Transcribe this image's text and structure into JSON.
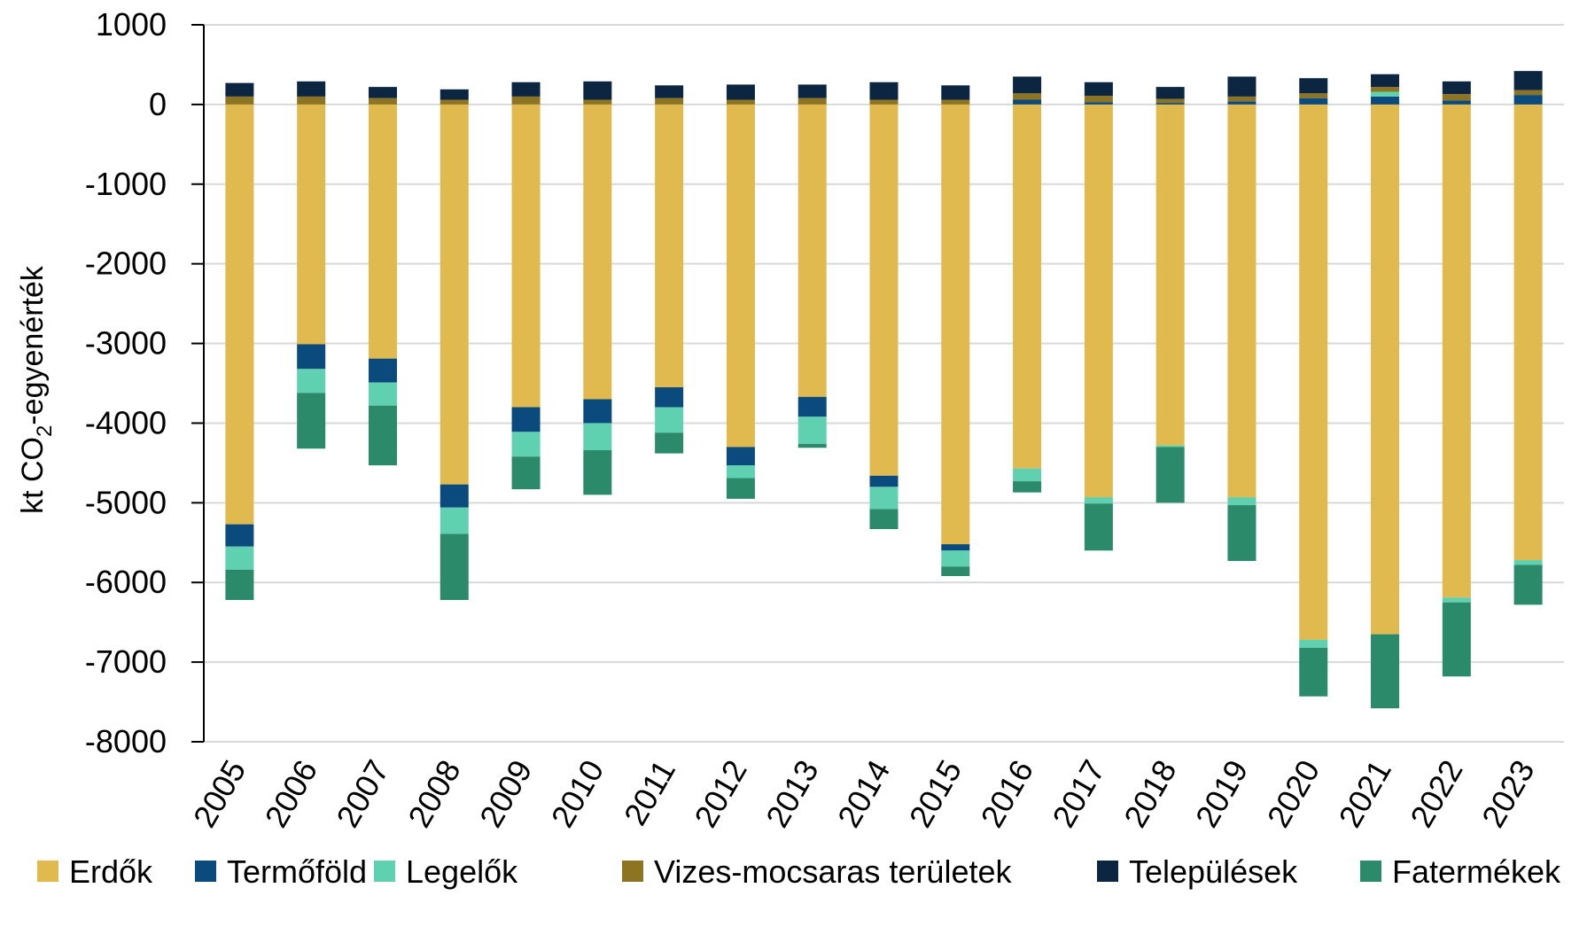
{
  "chart_data": {
    "type": "bar",
    "stacked": true,
    "ylabel": "kt CO",
    "ylabel_subscript": "2",
    "ylabel_suffix": "-egyenérték",
    "ylim": [
      -8000,
      1000
    ],
    "yticks": [
      1000,
      0,
      -1000,
      -2000,
      -3000,
      -4000,
      -5000,
      -6000,
      -7000,
      -8000
    ],
    "ytick_labels": [
      "1000",
      "0",
      "-1000",
      "-2000",
      "-3000",
      "-4000",
      "-5000",
      "-6000",
      "-7000",
      "-8000"
    ],
    "grid": true,
    "legend_position": "bottom",
    "categories": [
      "2005",
      "2006",
      "2007",
      "2008",
      "2009",
      "2010",
      "2011",
      "2012",
      "2013",
      "2014",
      "2015",
      "2016",
      "2017",
      "2018",
      "2019",
      "2020",
      "2021",
      "2022",
      "2023"
    ],
    "series": [
      {
        "name": "Erdők",
        "color": "#E0B94F",
        "values": [
          -5270,
          -3010,
          -3190,
          -4770,
          -3800,
          -3700,
          -3550,
          -4300,
          -3670,
          -4660,
          -5520,
          -4570,
          -4930,
          -4280,
          -4930,
          -6720,
          -6650,
          -6190,
          -5720
        ]
      },
      {
        "name": "Termőföld",
        "color": "#0B4A7C",
        "values": [
          -280,
          -310,
          -300,
          -290,
          -310,
          -300,
          -250,
          -230,
          -250,
          -140,
          -80,
          60,
          30,
          20,
          40,
          80,
          100,
          50,
          120
        ]
      },
      {
        "name": "Legelők",
        "color": "#5FD0B0",
        "values": [
          -290,
          -300,
          -290,
          -330,
          -310,
          -340,
          -320,
          -160,
          -340,
          -280,
          -200,
          -160,
          -80,
          -20,
          -100,
          -100,
          60,
          -60,
          -60
        ]
      },
      {
        "name": "Vizes-mocsaras területek",
        "color": "#8C7422",
        "values": [
          100,
          100,
          80,
          60,
          100,
          60,
          80,
          60,
          80,
          60,
          60,
          80,
          80,
          50,
          60,
          60,
          60,
          80,
          60
        ]
      },
      {
        "name": "Települések",
        "color": "#0C2540",
        "values": [
          170,
          190,
          140,
          130,
          180,
          230,
          160,
          190,
          170,
          220,
          180,
          210,
          170,
          150,
          250,
          190,
          160,
          160,
          240
        ]
      },
      {
        "name": "Fatermékek",
        "color": "#2A8A6A",
        "values": [
          -380,
          -700,
          -750,
          -830,
          -410,
          -560,
          -260,
          -260,
          -50,
          -250,
          -120,
          -140,
          -590,
          -700,
          -700,
          -610,
          -930,
          -930,
          -500
        ]
      }
    ]
  }
}
